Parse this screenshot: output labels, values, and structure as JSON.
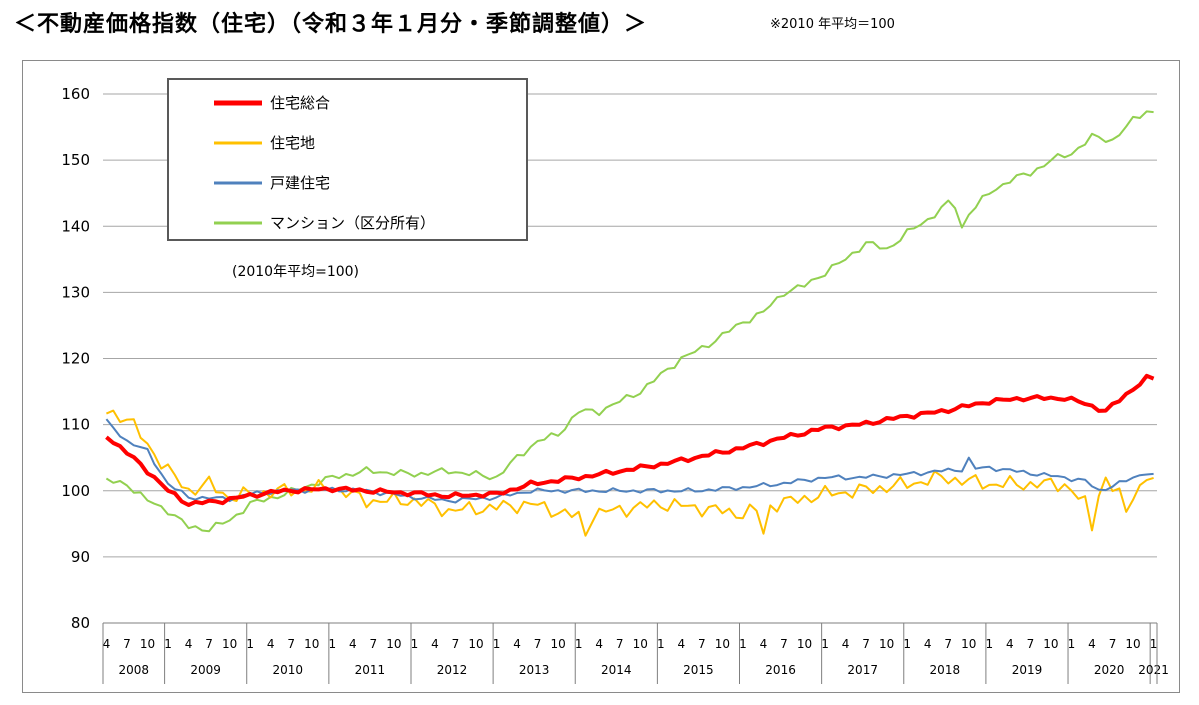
{
  "header": {
    "title": "＜不動産価格指数（住宅）（令和３年１月分・季節調整値）＞",
    "note": "※2010 年平均＝100"
  },
  "chart_data": {
    "type": "line",
    "x_start": "2008-04",
    "x_end": "2021-01",
    "ylim": [
      80,
      160
    ],
    "yticks": [
      80,
      90,
      100,
      110,
      120,
      130,
      140,
      150,
      160
    ],
    "grid": true,
    "legend_placement": "top-left",
    "annotation": "(2010年平均=100)",
    "month_labels": [
      "1",
      "4",
      "7",
      "10"
    ],
    "years": [
      "2008",
      "2009",
      "2010",
      "2011",
      "2012",
      "2013",
      "2014",
      "2015",
      "2016",
      "2017",
      "2018",
      "2019",
      "2020",
      "2021"
    ],
    "series": [
      {
        "name": "住宅総合",
        "color": "#ff0000",
        "width": 4,
        "keypoints": [
          [
            "2008-04",
            108.3
          ],
          [
            "2008-09",
            104
          ],
          [
            "2009-01",
            100
          ],
          [
            "2009-04",
            98
          ],
          [
            "2009-09",
            98.5
          ],
          [
            "2010-01",
            99.3
          ],
          [
            "2010-06",
            100
          ],
          [
            "2011-01",
            100.3
          ],
          [
            "2011-06",
            100
          ],
          [
            "2012-01",
            99.6
          ],
          [
            "2012-06",
            99.2
          ],
          [
            "2013-01",
            99.5
          ],
          [
            "2013-06",
            101
          ],
          [
            "2014-01",
            102
          ],
          [
            "2014-06",
            102.8
          ],
          [
            "2015-01",
            104
          ],
          [
            "2015-06",
            105
          ],
          [
            "2016-01",
            106.5
          ],
          [
            "2016-06",
            107.8
          ],
          [
            "2017-01",
            109.5
          ],
          [
            "2017-06",
            110
          ],
          [
            "2018-01",
            111.3
          ],
          [
            "2018-06",
            112
          ],
          [
            "2019-01",
            113.5
          ],
          [
            "2019-06",
            114
          ],
          [
            "2019-12",
            114
          ],
          [
            "2020-03",
            113.2
          ],
          [
            "2020-06",
            112
          ],
          [
            "2020-09",
            114.6
          ],
          [
            "2020-12",
            117
          ],
          [
            "2021-01",
            117
          ]
        ]
      },
      {
        "name": "住宅地",
        "color": "#ffc000",
        "width": 2,
        "keypoints": [
          [
            "2008-04",
            112
          ],
          [
            "2008-07",
            111
          ],
          [
            "2008-10",
            107
          ],
          [
            "2009-01",
            103
          ],
          [
            "2009-04",
            100
          ],
          [
            "2009-07",
            101
          ],
          [
            "2009-10",
            99
          ],
          [
            "2010-01",
            99.5
          ],
          [
            "2010-06",
            100
          ],
          [
            "2011-01",
            100.5
          ],
          [
            "2011-06",
            98.5
          ],
          [
            "2012-01",
            98.5
          ],
          [
            "2012-06",
            97
          ],
          [
            "2013-01",
            97.5
          ],
          [
            "2013-06",
            98
          ],
          [
            "2014-01",
            96
          ],
          [
            "2014-06",
            97
          ],
          [
            "2015-01",
            98
          ],
          [
            "2015-06",
            97.5
          ],
          [
            "2016-01",
            96.5
          ],
          [
            "2016-06",
            98
          ],
          [
            "2017-01",
            99.5
          ],
          [
            "2017-06",
            100
          ],
          [
            "2018-01",
            101
          ],
          [
            "2018-06",
            102
          ],
          [
            "2019-01",
            101
          ],
          [
            "2019-06",
            101
          ],
          [
            "2019-12",
            101
          ],
          [
            "2020-03",
            98
          ],
          [
            "2020-06",
            101
          ],
          [
            "2020-09",
            99
          ],
          [
            "2020-12",
            101.5
          ],
          [
            "2021-01",
            102
          ]
        ],
        "dips": [
          [
            "2014-02",
            93.2
          ],
          [
            "2016-04",
            93.5
          ],
          [
            "2020-04",
            94
          ],
          [
            "2020-06",
            102
          ],
          [
            "2020-09",
            96.8
          ]
        ]
      },
      {
        "name": "戸建住宅",
        "color": "#4f81bd",
        "width": 2,
        "keypoints": [
          [
            "2008-04",
            110.5
          ],
          [
            "2008-07",
            107.5
          ],
          [
            "2008-10",
            106
          ],
          [
            "2009-01",
            101
          ],
          [
            "2009-04",
            99
          ],
          [
            "2009-10",
            98.8
          ],
          [
            "2010-01",
            99.5
          ],
          [
            "2010-06",
            100
          ],
          [
            "2011-01",
            100.2
          ],
          [
            "2011-06",
            100
          ],
          [
            "2012-01",
            99
          ],
          [
            "2012-06",
            98.5
          ],
          [
            "2013-01",
            99
          ],
          [
            "2013-06",
            100
          ],
          [
            "2014-01",
            100
          ],
          [
            "2014-06",
            100
          ],
          [
            "2015-01",
            100
          ],
          [
            "2015-06",
            100
          ],
          [
            "2016-01",
            100.5
          ],
          [
            "2016-06",
            101
          ],
          [
            "2017-01",
            102
          ],
          [
            "2017-06",
            102
          ],
          [
            "2018-01",
            102.5
          ],
          [
            "2018-06",
            103
          ],
          [
            "2019-01",
            103.5
          ],
          [
            "2019-06",
            102.8
          ],
          [
            "2019-12",
            102
          ],
          [
            "2020-03",
            101.5
          ],
          [
            "2020-05",
            100
          ],
          [
            "2020-09",
            101.5
          ],
          [
            "2020-12",
            102.8
          ],
          [
            "2021-01",
            102.3
          ]
        ],
        "dips": [
          [
            "2018-10",
            105
          ]
        ]
      },
      {
        "name": "マンション（区分所有）",
        "color": "#92d050",
        "width": 2,
        "keypoints": [
          [
            "2008-04",
            101.5
          ],
          [
            "2008-07",
            101
          ],
          [
            "2008-10",
            98.5
          ],
          [
            "2009-01",
            97
          ],
          [
            "2009-04",
            94.5
          ],
          [
            "2009-07",
            94.2
          ],
          [
            "2009-10",
            95.5
          ],
          [
            "2010-01",
            98
          ],
          [
            "2010-06",
            99.5
          ],
          [
            "2011-01",
            102
          ],
          [
            "2011-06",
            103
          ],
          [
            "2012-01",
            102.5
          ],
          [
            "2012-06",
            103
          ],
          [
            "2013-01",
            102
          ],
          [
            "2013-04",
            105
          ],
          [
            "2013-07",
            107.5
          ],
          [
            "2013-10",
            108.5
          ],
          [
            "2014-01",
            112
          ],
          [
            "2014-04",
            112
          ],
          [
            "2014-07",
            113.5
          ],
          [
            "2014-10",
            115
          ],
          [
            "2015-01",
            117.5
          ],
          [
            "2015-04",
            120
          ],
          [
            "2015-07",
            121.5
          ],
          [
            "2015-10",
            123.5
          ],
          [
            "2016-01",
            125.5
          ],
          [
            "2016-04",
            127
          ],
          [
            "2016-07",
            130
          ],
          [
            "2016-10",
            131
          ],
          [
            "2017-01",
            133
          ],
          [
            "2017-04",
            135
          ],
          [
            "2017-07",
            137.5
          ],
          [
            "2017-10",
            136.5
          ],
          [
            "2018-01",
            139
          ],
          [
            "2018-04",
            141
          ],
          [
            "2018-07",
            143.5
          ],
          [
            "2018-10",
            142
          ],
          [
            "2019-01",
            145
          ],
          [
            "2019-04",
            147
          ],
          [
            "2019-07",
            148
          ],
          [
            "2019-10",
            150
          ],
          [
            "2020-01",
            151
          ],
          [
            "2020-04",
            153.5
          ],
          [
            "2020-07",
            153
          ],
          [
            "2020-10",
            156
          ],
          [
            "2020-12",
            157.5
          ],
          [
            "2021-01",
            157.2
          ]
        ],
        "dips": [
          [
            "2018-09",
            139.8
          ]
        ]
      }
    ]
  }
}
